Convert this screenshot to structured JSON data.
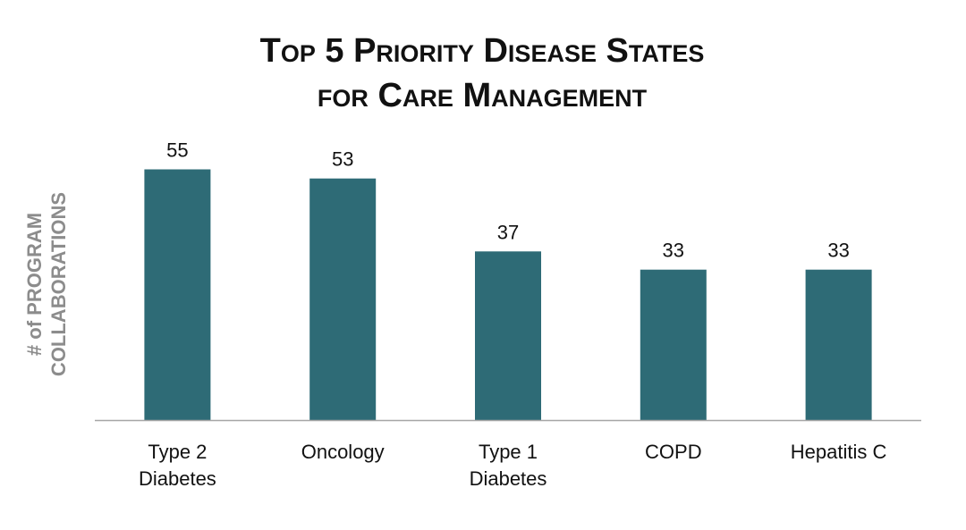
{
  "chart_data": {
    "type": "bar",
    "title": [
      "Top 5 Priority Disease States",
      "for Care Management"
    ],
    "ylabel": [
      "# of PROGRAM",
      "COLLABORATIONS"
    ],
    "xlabel": "",
    "categories": [
      [
        "Type 2",
        "Diabetes"
      ],
      [
        "Oncology"
      ],
      [
        "Type 1",
        "Diabetes"
      ],
      [
        "COPD"
      ],
      [
        "Hepatitis C"
      ]
    ],
    "values": [
      55,
      53,
      37,
      33,
      33
    ],
    "data_labels": [
      "55",
      "53",
      "37",
      "33",
      "33"
    ],
    "ylim": [
      0,
      60
    ],
    "grid": false,
    "legend": "none",
    "bar_color": "#2e6b76",
    "axis_color": "#a6a6a6"
  }
}
